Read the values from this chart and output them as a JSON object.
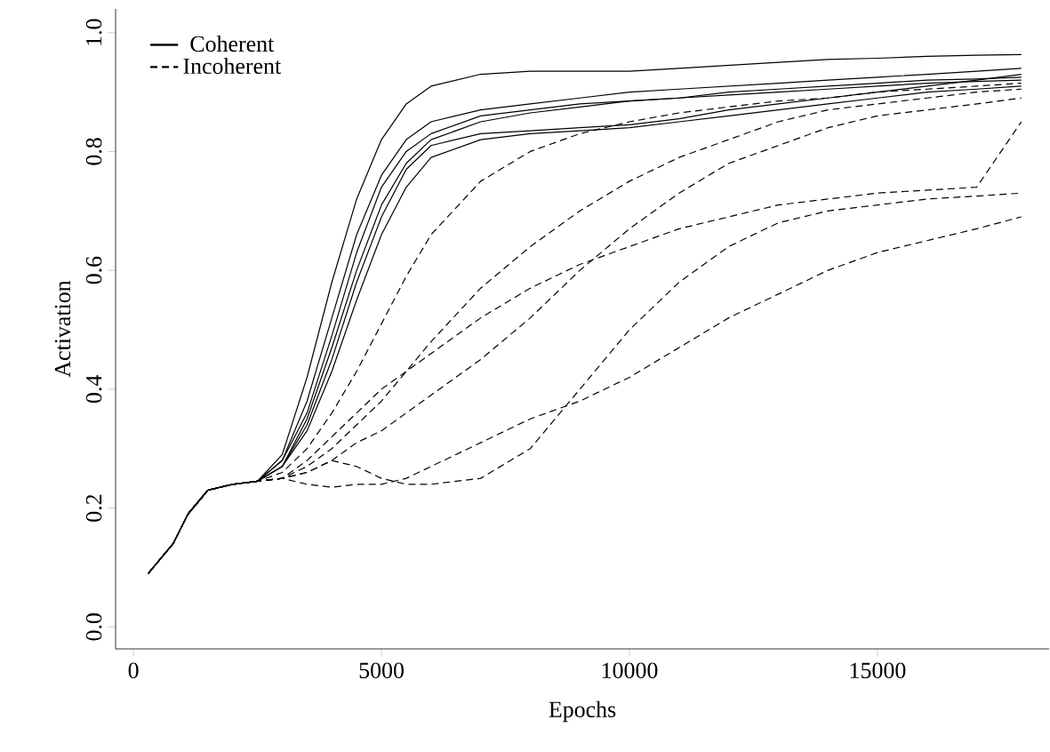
{
  "chart_data": {
    "type": "line",
    "xlabel": "Epochs",
    "ylabel": "Activation",
    "x": [
      300,
      500,
      800,
      1100,
      1500,
      2000,
      2500,
      3000,
      3500,
      4000,
      4500,
      5000,
      5500,
      6000,
      7000,
      8000,
      9000,
      10000,
      11000,
      12000,
      13000,
      14000,
      15000,
      16000,
      17000,
      17900
    ],
    "xlim": [
      -360,
      18460
    ],
    "ylim": [
      -0.037,
      1.04
    ],
    "xticks": [
      0,
      5000,
      10000,
      15000
    ],
    "yticks": [
      {
        "value": 0,
        "label": "0.0"
      },
      {
        "value": 0.2,
        "label": "0.2"
      },
      {
        "value": 0.4,
        "label": "0.4"
      },
      {
        "value": 0.6,
        "label": "0.6"
      },
      {
        "value": 0.8,
        "label": "0.8"
      },
      {
        "value": 1,
        "label": "1.0"
      }
    ],
    "grid": false,
    "legend": "top left",
    "marker": "none",
    "series": [
      {
        "name": "Coherent",
        "color": "#000000",
        "line_style": "solid",
        "values": [
          0.09,
          0.11,
          0.14,
          0.19,
          0.23,
          0.24,
          0.245,
          0.29,
          0.42,
          0.58,
          0.72,
          0.82,
          0.88,
          0.91,
          0.93,
          0.935,
          0.935,
          0.935,
          0.94,
          0.945,
          0.95,
          0.955,
          0.957,
          0.96,
          0.962,
          0.963
        ]
      },
      {
        "color": "#000000",
        "line_style": "solid",
        "values": [
          0.09,
          0.11,
          0.14,
          0.19,
          0.23,
          0.24,
          0.245,
          0.28,
          0.38,
          0.52,
          0.66,
          0.76,
          0.82,
          0.85,
          0.87,
          0.88,
          0.89,
          0.9,
          0.905,
          0.91,
          0.915,
          0.92,
          0.925,
          0.93,
          0.935,
          0.94
        ]
      },
      {
        "color": "#000000",
        "line_style": "solid",
        "values": [
          0.09,
          0.11,
          0.14,
          0.19,
          0.23,
          0.24,
          0.245,
          0.27,
          0.35,
          0.47,
          0.6,
          0.71,
          0.78,
          0.82,
          0.85,
          0.865,
          0.875,
          0.885,
          0.89,
          0.9,
          0.905,
          0.91,
          0.915,
          0.92,
          0.922,
          0.925
        ]
      },
      {
        "color": "#000000",
        "line_style": "solid",
        "values": [
          0.09,
          0.11,
          0.14,
          0.19,
          0.23,
          0.24,
          0.245,
          0.27,
          0.33,
          0.43,
          0.55,
          0.66,
          0.74,
          0.79,
          0.82,
          0.83,
          0.835,
          0.84,
          0.85,
          0.86,
          0.87,
          0.88,
          0.89,
          0.9,
          0.905,
          0.91
        ]
      },
      {
        "color": "#000000",
        "line_style": "solid",
        "values": [
          0.09,
          0.11,
          0.14,
          0.19,
          0.23,
          0.24,
          0.245,
          0.28,
          0.36,
          0.49,
          0.63,
          0.74,
          0.8,
          0.83,
          0.86,
          0.87,
          0.88,
          0.885,
          0.89,
          0.895,
          0.9,
          0.905,
          0.91,
          0.915,
          0.918,
          0.92
        ]
      },
      {
        "color": "#000000",
        "line_style": "solid",
        "values": [
          0.09,
          0.11,
          0.14,
          0.19,
          0.23,
          0.24,
          0.245,
          0.27,
          0.34,
          0.45,
          0.58,
          0.69,
          0.77,
          0.81,
          0.83,
          0.835,
          0.84,
          0.845,
          0.855,
          0.87,
          0.88,
          0.89,
          0.9,
          0.91,
          0.92,
          0.93
        ]
      },
      {
        "name": "Incoherent",
        "color": "#000000",
        "line_style": "dashed",
        "values": [
          0.09,
          0.11,
          0.14,
          0.19,
          0.23,
          0.24,
          0.245,
          0.26,
          0.3,
          0.36,
          0.43,
          0.51,
          0.59,
          0.66,
          0.75,
          0.8,
          0.83,
          0.85,
          0.865,
          0.875,
          0.885,
          0.89,
          0.9,
          0.905,
          0.91,
          0.915
        ]
      },
      {
        "color": "#000000",
        "line_style": "dashed",
        "values": [
          0.09,
          0.11,
          0.14,
          0.19,
          0.23,
          0.24,
          0.245,
          0.25,
          0.27,
          0.3,
          0.34,
          0.38,
          0.43,
          0.48,
          0.57,
          0.64,
          0.7,
          0.75,
          0.79,
          0.82,
          0.85,
          0.87,
          0.88,
          0.89,
          0.9,
          0.905
        ]
      },
      {
        "color": "#000000",
        "line_style": "dashed",
        "values": [
          0.09,
          0.11,
          0.14,
          0.19,
          0.23,
          0.24,
          0.245,
          0.25,
          0.26,
          0.28,
          0.31,
          0.33,
          0.36,
          0.39,
          0.45,
          0.52,
          0.6,
          0.67,
          0.73,
          0.78,
          0.81,
          0.84,
          0.86,
          0.87,
          0.88,
          0.89
        ]
      },
      {
        "color": "#000000",
        "line_style": "dashed",
        "values": [
          0.09,
          0.11,
          0.14,
          0.19,
          0.23,
          0.24,
          0.245,
          0.25,
          0.26,
          0.28,
          0.27,
          0.25,
          0.24,
          0.24,
          0.25,
          0.3,
          0.4,
          0.5,
          0.58,
          0.64,
          0.68,
          0.7,
          0.71,
          0.72,
          0.725,
          0.73
        ]
      },
      {
        "color": "#000000",
        "line_style": "dashed",
        "values": [
          0.09,
          0.11,
          0.14,
          0.19,
          0.23,
          0.24,
          0.245,
          0.25,
          0.24,
          0.235,
          0.24,
          0.24,
          0.25,
          0.27,
          0.31,
          0.35,
          0.38,
          0.42,
          0.47,
          0.52,
          0.56,
          0.6,
          0.63,
          0.65,
          0.67,
          0.69
        ]
      },
      {
        "color": "#000000",
        "line_style": "dashed",
        "values": [
          0.09,
          0.11,
          0.14,
          0.19,
          0.23,
          0.24,
          0.245,
          0.25,
          0.28,
          0.32,
          0.36,
          0.4,
          0.43,
          0.46,
          0.52,
          0.57,
          0.61,
          0.64,
          0.67,
          0.69,
          0.71,
          0.72,
          0.73,
          0.735,
          0.74,
          0.85
        ]
      }
    ]
  }
}
